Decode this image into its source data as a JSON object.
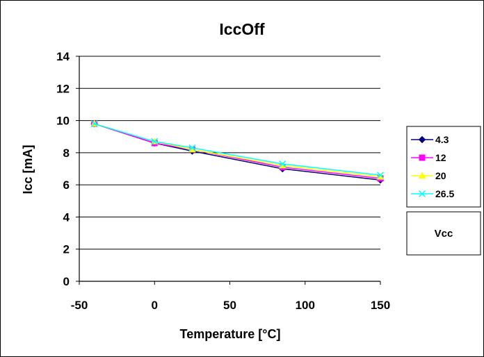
{
  "chart_data": {
    "type": "line",
    "title": "IccOff",
    "xlabel": "Temperature [°C]",
    "ylabel": "Icc [mA]",
    "x": [
      -40,
      0,
      25,
      85,
      150
    ],
    "xlim": [
      -50,
      150
    ],
    "ylim": [
      0,
      14
    ],
    "xticks": [
      -50,
      0,
      50,
      100,
      150
    ],
    "yticks": [
      0,
      2,
      4,
      6,
      8,
      10,
      12,
      14
    ],
    "grid": "horizontal",
    "legend_position": "right",
    "legend_title": "Vcc",
    "series": [
      {
        "name": "4.3",
        "values": [
          9.8,
          8.6,
          8.1,
          7.0,
          6.3
        ],
        "color": "#000080",
        "marker": "diamond"
      },
      {
        "name": "12",
        "values": [
          9.8,
          8.6,
          8.2,
          7.1,
          6.4
        ],
        "color": "#ff00ff",
        "marker": "square"
      },
      {
        "name": "20",
        "values": [
          9.8,
          8.7,
          8.2,
          7.2,
          6.5
        ],
        "color": "#ffff00",
        "marker": "triangle"
      },
      {
        "name": "26.5",
        "values": [
          9.8,
          8.7,
          8.3,
          7.3,
          6.6
        ],
        "color": "#00ffff",
        "marker": "x"
      }
    ]
  }
}
